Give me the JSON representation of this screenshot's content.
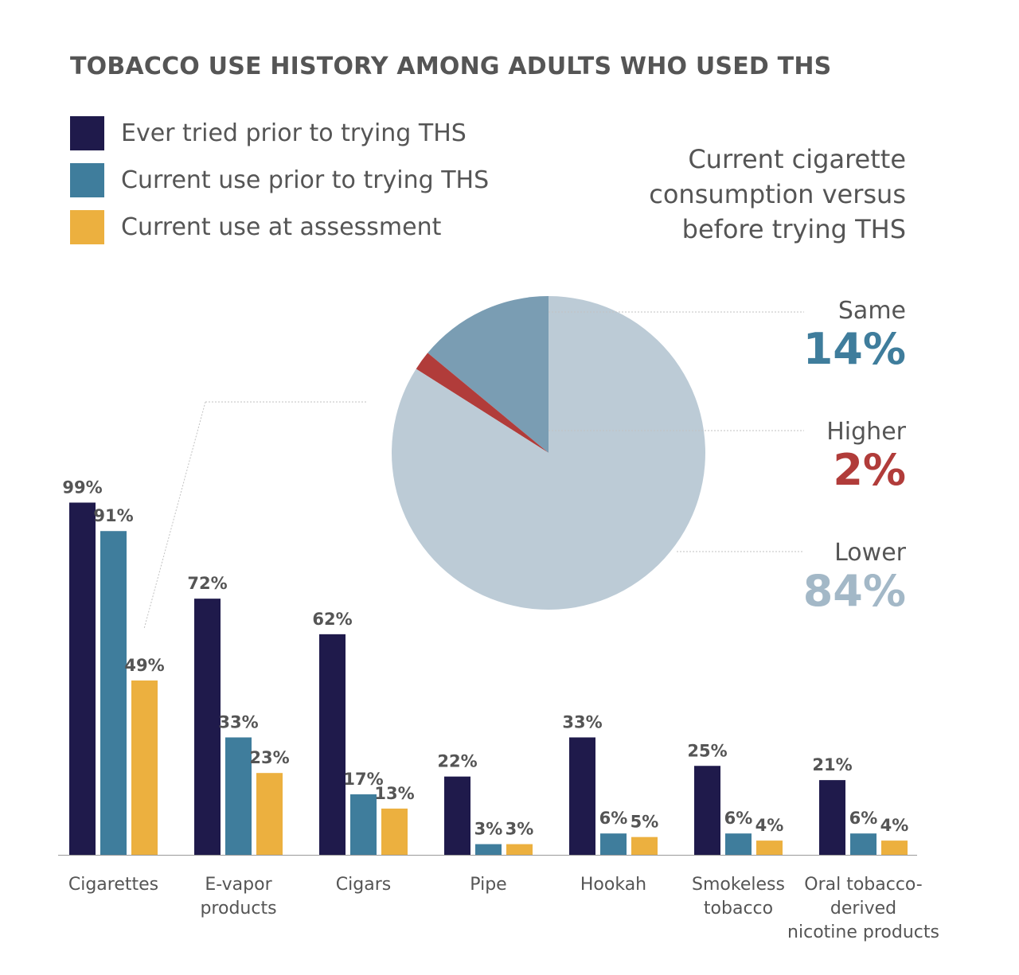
{
  "chart_data": [
    {
      "type": "bar",
      "title": "TOBACCO USE HISTORY AMONG ADULTS WHO USED THS",
      "categories": [
        "Cigarettes",
        "E-vapor\nproducts",
        "Cigars",
        "Pipe",
        "Hookah",
        "Smokeless\ntobacco",
        "Oral tobacco-\nderived\nnicotine products"
      ],
      "series": [
        {
          "name": "Ever tried prior to trying THS",
          "color": "#1f1a4b",
          "values": [
            99,
            72,
            62,
            22,
            33,
            25,
            21
          ]
        },
        {
          "name": "Current use prior to trying THS",
          "color": "#3f7d9c",
          "values": [
            91,
            33,
            17,
            3,
            6,
            6,
            6
          ]
        },
        {
          "name": "Current use at assessment",
          "color": "#ecb03f",
          "values": [
            49,
            23,
            13,
            3,
            5,
            4,
            4
          ]
        }
      ],
      "value_suffix": "%",
      "ylim": [
        0,
        100
      ],
      "grid": false,
      "legend_placement": "top-left"
    },
    {
      "type": "pie",
      "title": "Current cigarette consumption versus before trying THS",
      "slices": [
        {
          "label": "Same",
          "value": 14,
          "display": "14%",
          "color": "#7a9db3",
          "text_color": "#3f7d9c"
        },
        {
          "label": "Higher",
          "value": 2,
          "display": "2%",
          "color": "#b13c3a",
          "text_color": "#b13c3a"
        },
        {
          "label": "Lower",
          "value": 84,
          "display": "84%",
          "color": "#bccbd6",
          "text_color": "#a3b8c7"
        }
      ]
    }
  ]
}
